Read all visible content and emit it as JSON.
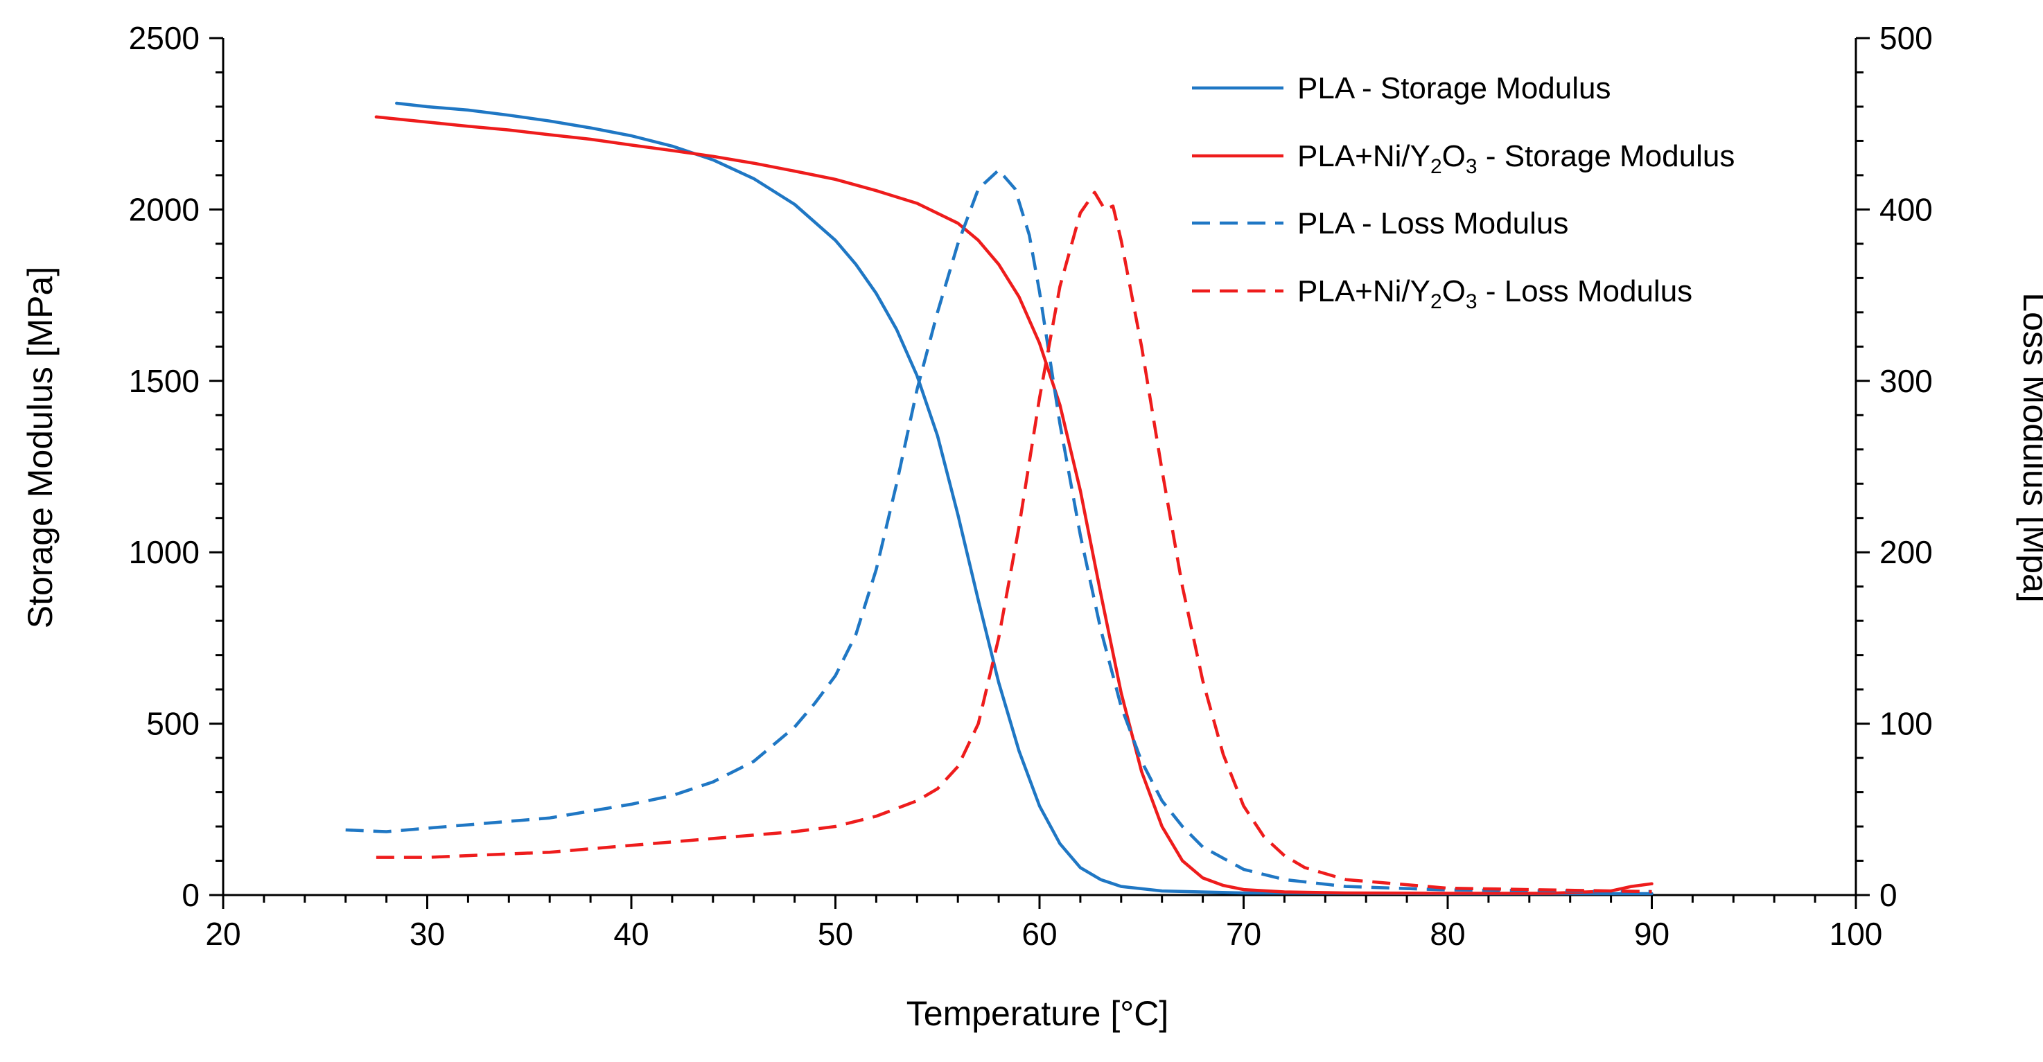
{
  "chart_data": {
    "type": "line",
    "title": "",
    "xlabel": "Temperature [°C]",
    "ylabel": "Storage Modulus [MPa]",
    "y2label": "Loss Modulus [Mpa]",
    "xlim": [
      20,
      100
    ],
    "ylim": [
      0,
      2500
    ],
    "y2lim": [
      0,
      500
    ],
    "x_ticks": [
      20,
      30,
      40,
      50,
      60,
      70,
      80,
      90,
      100
    ],
    "y_ticks": [
      0,
      500,
      1000,
      1500,
      2000,
      2500
    ],
    "y2_ticks": [
      0,
      100,
      200,
      300,
      400,
      500
    ],
    "grid": false,
    "legend_position": "top-right",
    "series": [
      {
        "name": "PLA - Storage Modulus",
        "label_parts": [
          "PLA - Storage Modulus"
        ],
        "axis": "left",
        "color": "#1f77c4",
        "dash": "solid",
        "points": [
          [
            28.5,
            2310
          ],
          [
            30,
            2300
          ],
          [
            32,
            2290
          ],
          [
            34,
            2275
          ],
          [
            36,
            2258
          ],
          [
            38,
            2238
          ],
          [
            40,
            2215
          ],
          [
            42,
            2185
          ],
          [
            44,
            2145
          ],
          [
            46,
            2090
          ],
          [
            48,
            2015
          ],
          [
            50,
            1910
          ],
          [
            51,
            1840
          ],
          [
            52,
            1755
          ],
          [
            53,
            1650
          ],
          [
            54,
            1515
          ],
          [
            55,
            1340
          ],
          [
            56,
            1110
          ],
          [
            57,
            860
          ],
          [
            58,
            620
          ],
          [
            59,
            420
          ],
          [
            60,
            260
          ],
          [
            61,
            150
          ],
          [
            62,
            80
          ],
          [
            63,
            45
          ],
          [
            64,
            25
          ],
          [
            66,
            12
          ],
          [
            70,
            6
          ],
          [
            80,
            4
          ],
          [
            90,
            4
          ]
        ]
      },
      {
        "name": "PLA+Ni/Y2O3 - Storage Modulus",
        "label_parts": [
          "PLA+Ni/Y",
          "2",
          "O",
          "3",
          " - Storage Modulus"
        ],
        "axis": "left",
        "color": "#ee1c1c",
        "dash": "solid",
        "points": [
          [
            27.5,
            2270
          ],
          [
            30,
            2255
          ],
          [
            32,
            2243
          ],
          [
            34,
            2232
          ],
          [
            36,
            2218
          ],
          [
            38,
            2205
          ],
          [
            40,
            2188
          ],
          [
            42,
            2172
          ],
          [
            44,
            2155
          ],
          [
            46,
            2135
          ],
          [
            48,
            2112
          ],
          [
            50,
            2088
          ],
          [
            52,
            2055
          ],
          [
            54,
            2018
          ],
          [
            56,
            1960
          ],
          [
            57,
            1910
          ],
          [
            58,
            1840
          ],
          [
            59,
            1745
          ],
          [
            60,
            1610
          ],
          [
            61,
            1430
          ],
          [
            62,
            1180
          ],
          [
            63,
            880
          ],
          [
            64,
            590
          ],
          [
            65,
            360
          ],
          [
            66,
            200
          ],
          [
            67,
            100
          ],
          [
            68,
            50
          ],
          [
            69,
            28
          ],
          [
            70,
            16
          ],
          [
            72,
            9
          ],
          [
            75,
            6
          ],
          [
            80,
            5
          ],
          [
            85,
            5
          ],
          [
            88,
            12
          ],
          [
            89,
            25
          ],
          [
            90,
            33
          ]
        ]
      },
      {
        "name": "PLA - Loss Modulus",
        "label_parts": [
          "PLA - Loss Modulus"
        ],
        "axis": "right",
        "color": "#1f77c4",
        "dash": "dashed",
        "points": [
          [
            26,
            38
          ],
          [
            28,
            37
          ],
          [
            30,
            39
          ],
          [
            32,
            41
          ],
          [
            34,
            43
          ],
          [
            36,
            45
          ],
          [
            38,
            49
          ],
          [
            40,
            53
          ],
          [
            42,
            58
          ],
          [
            44,
            66
          ],
          [
            46,
            78
          ],
          [
            48,
            98
          ],
          [
            49,
            112
          ],
          [
            50,
            128
          ],
          [
            51,
            152
          ],
          [
            52,
            190
          ],
          [
            53,
            240
          ],
          [
            54,
            295
          ],
          [
            55,
            340
          ],
          [
            56,
            380
          ],
          [
            57,
            412
          ],
          [
            58,
            423
          ],
          [
            58.8,
            412
          ],
          [
            59.5,
            385
          ],
          [
            60,
            352
          ],
          [
            61,
            275
          ],
          [
            62,
            210
          ],
          [
            63,
            155
          ],
          [
            64,
            110
          ],
          [
            65,
            78
          ],
          [
            66,
            55
          ],
          [
            67,
            40
          ],
          [
            68,
            28
          ],
          [
            70,
            15
          ],
          [
            72,
            9
          ],
          [
            75,
            5
          ],
          [
            80,
            3
          ],
          [
            90,
            2
          ]
        ]
      },
      {
        "name": "PLA+Ni/Y2O3 - Loss Modulus",
        "label_parts": [
          "PLA+Ni/Y",
          "2",
          "O",
          "3",
          " - Loss Modulus"
        ],
        "axis": "right",
        "color": "#ee1c1c",
        "dash": "dashed",
        "points": [
          [
            27.5,
            22
          ],
          [
            30,
            22
          ],
          [
            32,
            23
          ],
          [
            34,
            24
          ],
          [
            36,
            25
          ],
          [
            38,
            27
          ],
          [
            40,
            29
          ],
          [
            42,
            31
          ],
          [
            44,
            33
          ],
          [
            46,
            35
          ],
          [
            48,
            37
          ],
          [
            50,
            40
          ],
          [
            52,
            46
          ],
          [
            54,
            55
          ],
          [
            55,
            62
          ],
          [
            56,
            75
          ],
          [
            57,
            100
          ],
          [
            58,
            150
          ],
          [
            59,
            215
          ],
          [
            60,
            290
          ],
          [
            61,
            355
          ],
          [
            62,
            398
          ],
          [
            62.7,
            410
          ],
          [
            63.2,
            400
          ],
          [
            63.6,
            402
          ],
          [
            64,
            382
          ],
          [
            65,
            320
          ],
          [
            66,
            248
          ],
          [
            67,
            180
          ],
          [
            68,
            125
          ],
          [
            69,
            82
          ],
          [
            70,
            52
          ],
          [
            71,
            34
          ],
          [
            72,
            23
          ],
          [
            73,
            16
          ],
          [
            75,
            9
          ],
          [
            80,
            4
          ],
          [
            85,
            3
          ],
          [
            90,
            2
          ]
        ]
      }
    ]
  }
}
